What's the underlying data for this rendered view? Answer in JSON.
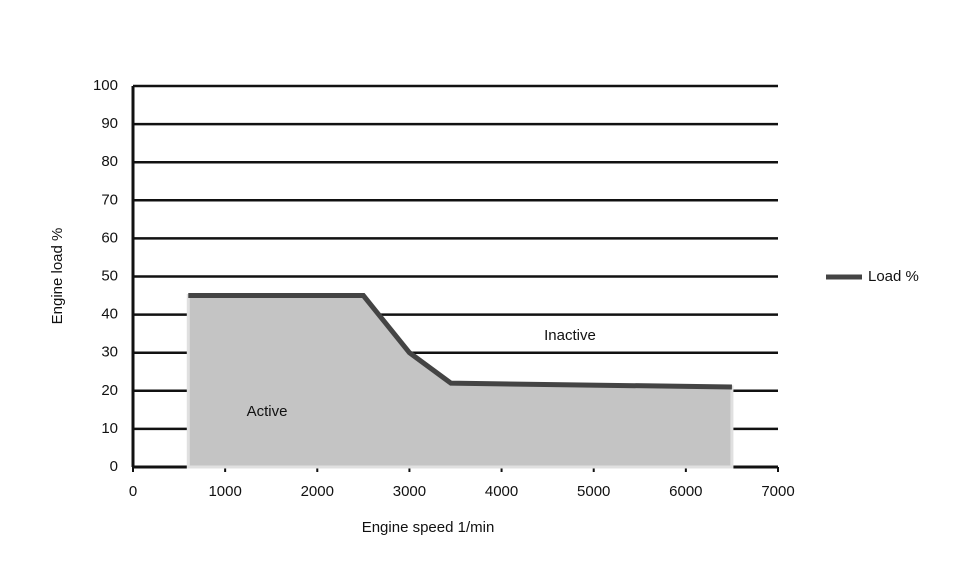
{
  "chart_data": {
    "type": "line",
    "x_label": "Engine speed 1/min",
    "y_label": "Engine load %",
    "x": [
      600,
      2500,
      3000,
      3450,
      6500
    ],
    "series": [
      {
        "name": "Load %",
        "color": "#444444",
        "fill": "#c4c4c4",
        "values": [
          45,
          45,
          30,
          22,
          21
        ]
      }
    ],
    "annotations": [
      "Active",
      "Inactive"
    ],
    "xlim": [
      0,
      7000
    ],
    "xticks": [
      0,
      1000,
      2000,
      3000,
      4000,
      5000,
      6000,
      7000
    ],
    "ylim": [
      0,
      100
    ],
    "yticks": [
      0,
      10,
      20,
      30,
      40,
      50,
      60,
      70,
      80,
      90,
      100
    ],
    "grid": true,
    "legend": "right"
  }
}
